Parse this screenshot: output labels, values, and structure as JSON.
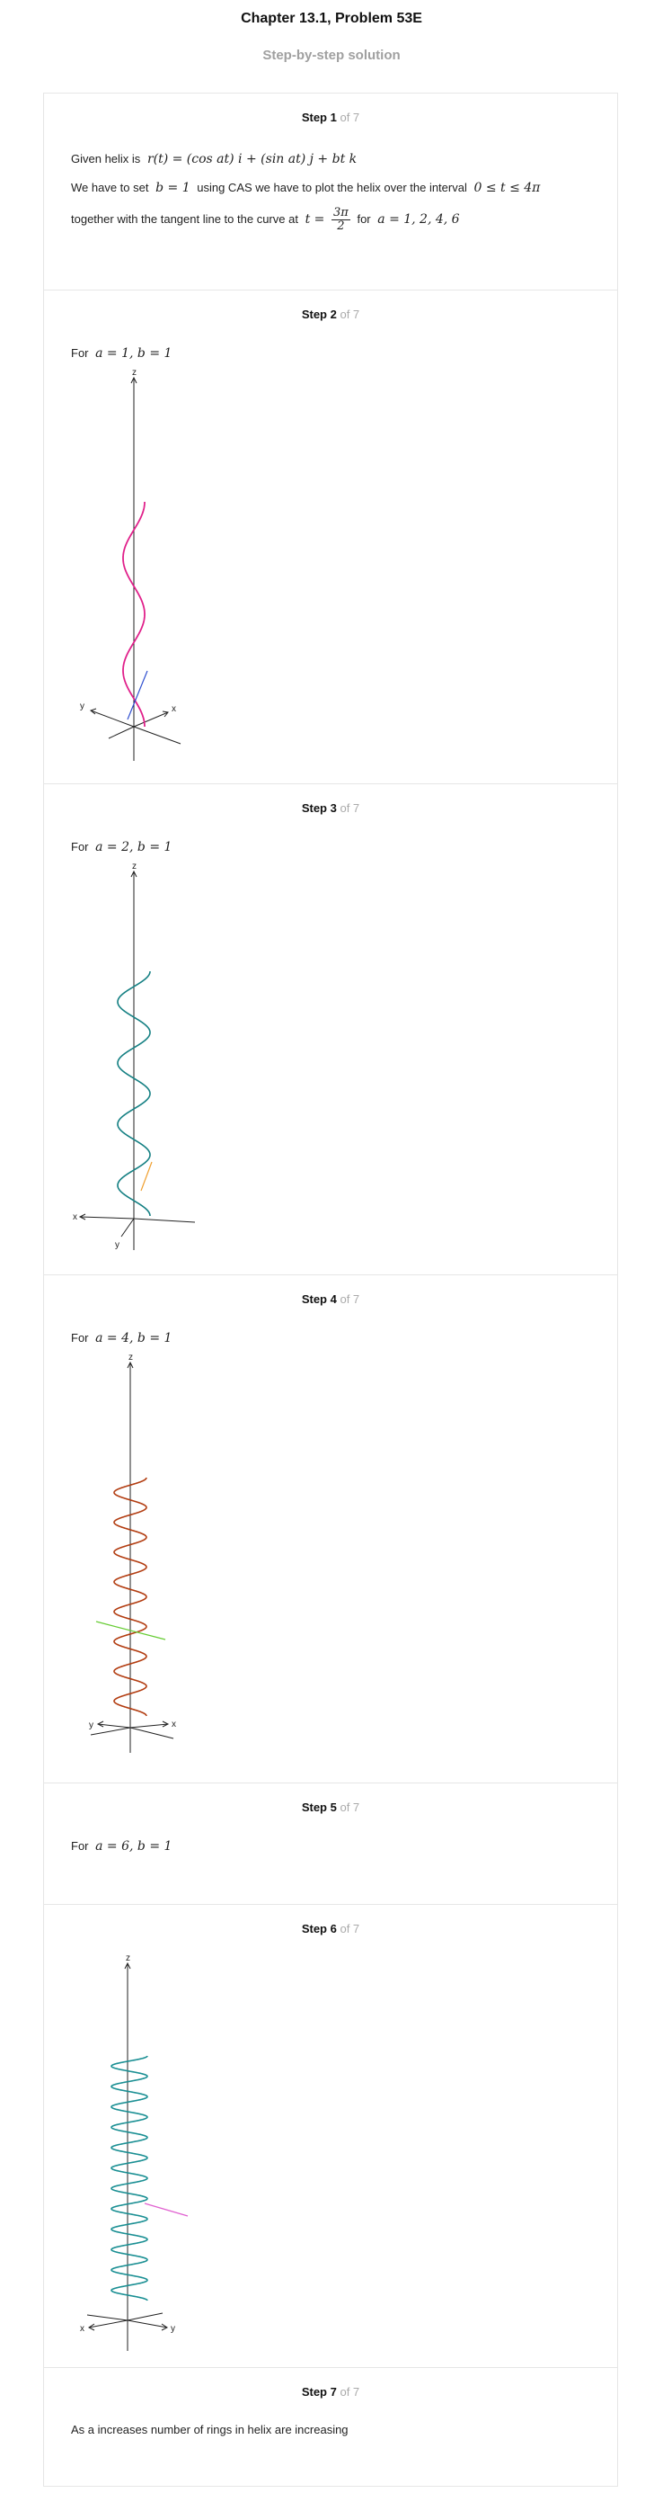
{
  "header": {
    "title": "Chapter 13.1, Problem 53E",
    "subtitle": "Step-by-step solution"
  },
  "step_of": "of 7",
  "steps": [
    {
      "label": "Step 1",
      "lines": {
        "given_prefix": "Given helix is",
        "helix_eq": "r(t) = (cos at) i + (sin at) j + bt k",
        "have_to_set": "We have to set",
        "b_eq": "b = 1",
        "using_cas": "using CAS we have to plot the helix over the interval",
        "interval": "0 ≤ t ≤ 4π",
        "together": "together with the tangent line to the curve at",
        "t_eq": "t =",
        "t_num": "3π",
        "t_den": "2",
        "for_word": "for",
        "a_values": "a = 1, 2, 4, 6"
      }
    },
    {
      "label": "Step 2",
      "for_word": "For",
      "params": "a = 1, b = 1",
      "axes": {
        "z": "z",
        "x": "x",
        "y": "y"
      },
      "colors": {
        "helix": "#e0208a",
        "tangent": "#3050d0"
      }
    },
    {
      "label": "Step 3",
      "for_word": "For",
      "params": "a = 2, b = 1",
      "axes": {
        "z": "z",
        "x": "x",
        "y": "y"
      },
      "colors": {
        "helix": "#137f82",
        "tangent": "#f0a030"
      }
    },
    {
      "label": "Step 4",
      "for_word": "For",
      "params": "a = 4, b = 1",
      "axes": {
        "z": "z",
        "x": "x",
        "y": "y"
      },
      "colors": {
        "helix": "#b23c10",
        "tangent": "#66cc33"
      }
    },
    {
      "label": "Step 5",
      "for_word": "For",
      "params": "a = 6, b = 1"
    },
    {
      "label": "Step 6",
      "axes": {
        "z": "z",
        "x": "x",
        "y": "y"
      },
      "colors": {
        "helix": "#1a8f93",
        "tangent": "#e060d0"
      }
    },
    {
      "label": "Step 7",
      "conclusion": "As a increases number of rings in helix are increasing"
    }
  ]
}
